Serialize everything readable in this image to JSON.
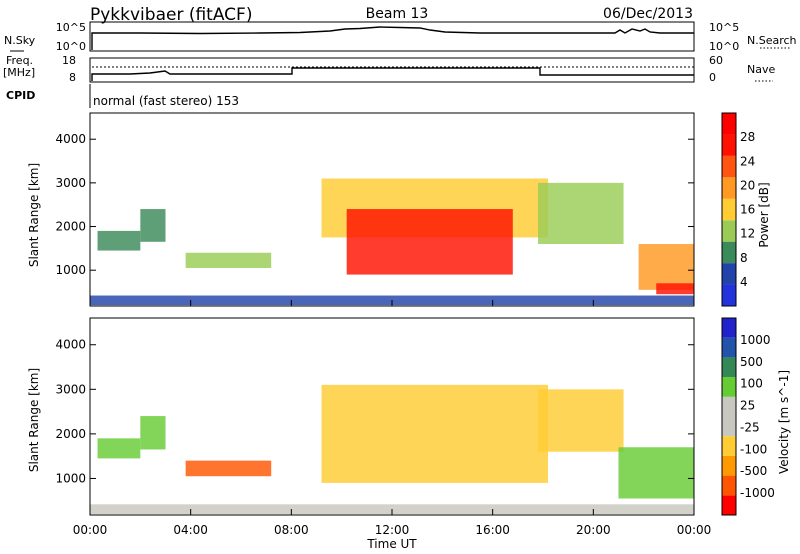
{
  "header": {
    "station": "Pykkvibaer (fitACF)",
    "beam": "Beam 13",
    "date": "06/Dec/2013"
  },
  "status_panels": {
    "nsky_label": "N.Sky",
    "nsky_ticks": [
      "10^5",
      "10^0"
    ],
    "nsearch_label": "N.Search",
    "nsearch_ticks": [
      "10^5",
      "10^0"
    ],
    "freq_label_1": "Freq.",
    "freq_label_2": "[MHz]",
    "freq_ticks": [
      "18",
      "8"
    ],
    "nave_label": "Nave",
    "nave_ticks": [
      "60",
      "0"
    ],
    "cpid_label": "CPID",
    "cpid_text": "normal (fast stereo) 153"
  },
  "colors": {
    "power_scale": [
      "#2233dd",
      "#2244aa",
      "#3a8a5a",
      "#9acc55",
      "#ffcc33",
      "#ff9922",
      "#ff5511",
      "#ff1100",
      "#ff0000"
    ],
    "velocity_scale": [
      "#ff0000",
      "#ff5500",
      "#ff9900",
      "#ffcc33",
      "#c8c8c0",
      "#c8c8c0",
      "#66cc33",
      "#338855",
      "#2255aa",
      "#2222cc"
    ],
    "ground_scatter": "#c8c8c0"
  },
  "chart_data": [
    {
      "type": "heatmap",
      "title": "",
      "xlabel": "Time UT",
      "ylabel": "Slant Range [km]",
      "xlim": [
        "00:00",
        "24:00"
      ],
      "ylim": [
        180,
        4600
      ],
      "x_ticks": [
        "00:00",
        "04:00",
        "08:00",
        "12:00",
        "16:00",
        "20:00",
        "00:00"
      ],
      "y_ticks": [
        "1000",
        "2000",
        "3000",
        "4000"
      ],
      "colorbar": {
        "label": "Power [dB]",
        "ticks": [
          "4",
          "8",
          "12",
          "16",
          "20",
          "24",
          "28"
        ],
        "range": [
          0,
          30
        ]
      },
      "regions": [
        {
          "t0": 0.0,
          "t1": 24.0,
          "r0": 200,
          "r1": 420,
          "value": 6
        },
        {
          "t0": 0.3,
          "t1": 2.0,
          "r0": 1450,
          "r1": 1900,
          "value": 8
        },
        {
          "t0": 2.0,
          "t1": 3.0,
          "r0": 1650,
          "r1": 2400,
          "value": 8
        },
        {
          "t0": 3.8,
          "t1": 7.2,
          "r0": 1050,
          "r1": 1400,
          "value": 12
        },
        {
          "t0": 9.2,
          "t1": 18.2,
          "r0": 1750,
          "r1": 3100,
          "value": 14
        },
        {
          "t0": 10.2,
          "t1": 16.8,
          "r0": 900,
          "r1": 2400,
          "value": 25
        },
        {
          "t0": 17.8,
          "t1": 21.2,
          "r0": 1600,
          "r1": 3000,
          "value": 12
        },
        {
          "t0": 21.8,
          "t1": 24.0,
          "r0": 550,
          "r1": 1600,
          "value": 18
        },
        {
          "t0": 22.5,
          "t1": 24.0,
          "r0": 450,
          "r1": 700,
          "value": 26
        }
      ]
    },
    {
      "type": "heatmap",
      "title": "",
      "xlabel": "Time UT",
      "ylabel": "Slant Range [km]",
      "xlim": [
        "00:00",
        "24:00"
      ],
      "ylim": [
        180,
        4600
      ],
      "x_ticks": [
        "00:00",
        "04:00",
        "08:00",
        "12:00",
        "16:00",
        "20:00",
        "00:00"
      ],
      "y_ticks": [
        "1000",
        "2000",
        "3000",
        "4000"
      ],
      "colorbar": {
        "label": "Velocity [m s^-1]",
        "ticks": [
          "1000",
          "500",
          "100",
          "25",
          "-25",
          "-100",
          "-500",
          "-1000"
        ],
        "range": [
          -1200,
          1200
        ]
      },
      "regions": [
        {
          "t0": 0.0,
          "t1": 24.0,
          "r0": 200,
          "r1": 420,
          "value": 80
        },
        {
          "t0": 0.3,
          "t1": 2.0,
          "r0": 1450,
          "r1": 1900,
          "value": 150
        },
        {
          "t0": 2.0,
          "t1": 3.0,
          "r0": 1650,
          "r1": 2400,
          "value": 200
        },
        {
          "t0": 3.8,
          "t1": 7.2,
          "r0": 1050,
          "r1": 1400,
          "value": -150
        },
        {
          "t0": 9.2,
          "t1": 18.2,
          "r0": 900,
          "r1": 3100,
          "value": 0
        },
        {
          "t0": 17.8,
          "t1": 21.2,
          "r0": 1600,
          "r1": 3000,
          "value": 0
        },
        {
          "t0": 21.0,
          "t1": 24.0,
          "r0": 550,
          "r1": 1700,
          "value": 400
        }
      ]
    }
  ]
}
